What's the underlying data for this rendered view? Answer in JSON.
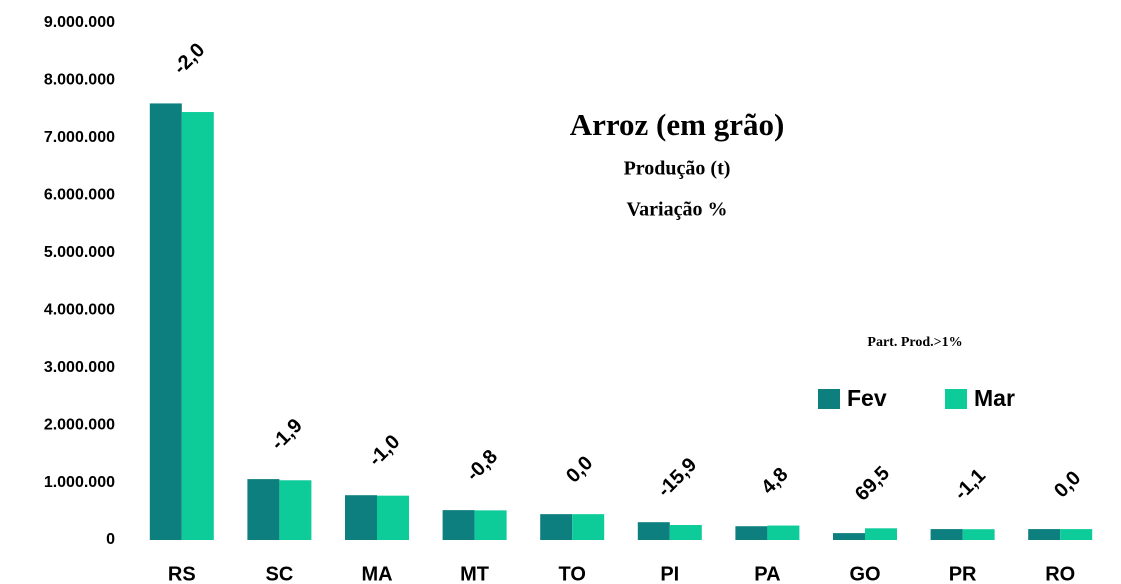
{
  "chart_data": {
    "type": "bar",
    "title": "Arroz (em grão)",
    "subtitle": [
      "Produção (t)",
      "Variação %"
    ],
    "note": "Part. Prod.>1%",
    "categories": [
      "RS",
      "SC",
      "MA",
      "MT",
      "TO",
      "PI",
      "PA",
      "GO",
      "PR",
      "RO"
    ],
    "series": [
      {
        "name": "Fev",
        "color": "#0e7f7f",
        "values": [
          7600000,
          1060000,
          780000,
          520000,
          450000,
          310000,
          240000,
          120000,
          190000,
          190000
        ]
      },
      {
        "name": "Mar",
        "color": "#0ecc99",
        "values": [
          7450000,
          1040000,
          772000,
          516000,
          450000,
          261000,
          251500,
          203400,
          188000,
          190000
        ]
      }
    ],
    "annotations": [
      "-2,0",
      "-1,9",
      "-1,0",
      "-0,8",
      "0,0",
      "-15,9",
      "4,8",
      "69,5",
      "-1,1",
      "0,0"
    ],
    "ylim": [
      0,
      9000000
    ],
    "yticks": [
      0,
      {
        "value": 1000000,
        "label": "1.000.000"
      },
      {
        "value": 2000000,
        "label": "2.000.000"
      },
      {
        "value": 3000000,
        "label": "3.000.000"
      },
      {
        "value": 4000000,
        "label": "4.000.000"
      },
      {
        "value": 5000000,
        "label": "5.000.000"
      },
      {
        "value": 6000000,
        "label": "6.000.000"
      },
      {
        "value": 7000000,
        "label": "7.000.000"
      },
      {
        "value": 8000000,
        "label": "8.000.000"
      },
      {
        "value": 9000000,
        "label": "9.000.000"
      }
    ],
    "grid": false
  }
}
